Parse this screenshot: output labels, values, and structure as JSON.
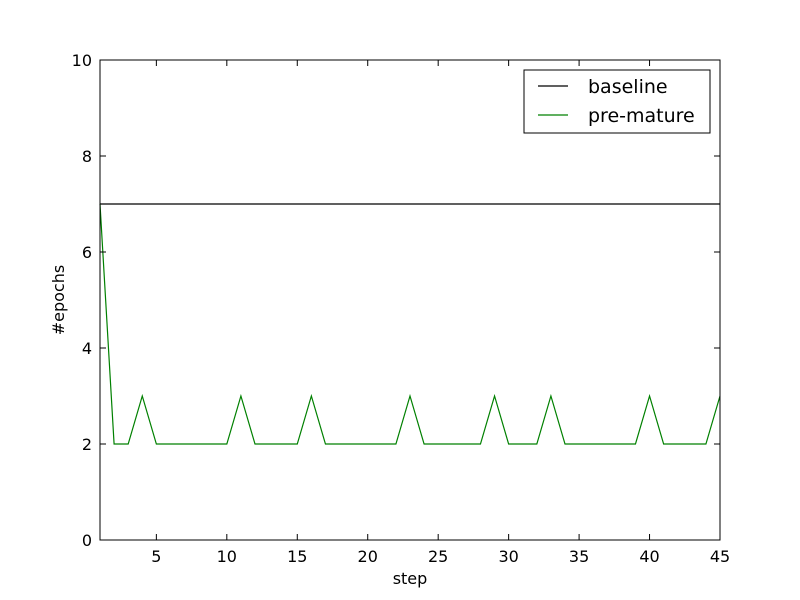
{
  "chart_data": {
    "type": "line",
    "title": "",
    "xlabel": "step",
    "ylabel": "#epochs",
    "xlim": [
      1,
      45
    ],
    "ylim": [
      0,
      10
    ],
    "xticks": [
      5,
      10,
      15,
      20,
      25,
      30,
      35,
      40,
      45
    ],
    "yticks": [
      0,
      2,
      4,
      6,
      8,
      10
    ],
    "grid": false,
    "legend_position": "top-right",
    "series": [
      {
        "name": "baseline",
        "color": "#000000",
        "x": [
          1,
          45
        ],
        "y": [
          7,
          7
        ]
      },
      {
        "name": "pre-mature",
        "color": "#008000",
        "x": [
          1,
          2,
          3,
          4,
          5,
          6,
          7,
          8,
          9,
          10,
          11,
          12,
          13,
          14,
          15,
          16,
          17,
          18,
          19,
          20,
          21,
          22,
          23,
          24,
          25,
          26,
          27,
          28,
          29,
          30,
          31,
          32,
          33,
          34,
          35,
          36,
          37,
          38,
          39,
          40,
          41,
          42,
          43,
          44,
          45
        ],
        "y": [
          7,
          2,
          2,
          3,
          2,
          2,
          2,
          2,
          2,
          2,
          3,
          2,
          2,
          2,
          2,
          3,
          2,
          2,
          2,
          2,
          2,
          2,
          3,
          2,
          2,
          2,
          2,
          2,
          3,
          2,
          2,
          2,
          3,
          2,
          2,
          2,
          2,
          2,
          2,
          3,
          2,
          2,
          2,
          2,
          3
        ]
      }
    ]
  }
}
